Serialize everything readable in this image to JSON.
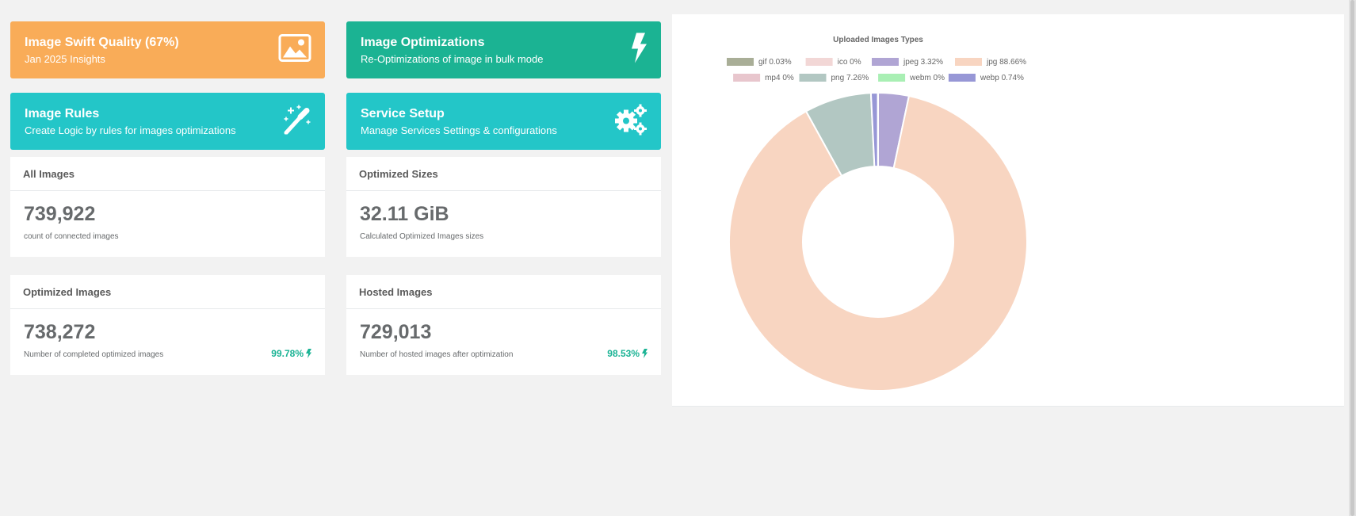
{
  "tiles": {
    "quality": {
      "title": "Image Swift Quality (67%)",
      "subtitle": "Jan 2025 Insights",
      "icon": "image-icon"
    },
    "optimizations": {
      "title": "Image Optimizations",
      "subtitle": "Re-Optimizations of image in bulk mode",
      "icon": "bolt-icon"
    },
    "rules": {
      "title": "Image Rules",
      "subtitle": "Create Logic by rules for images optimizations",
      "icon": "magic-wand-icon"
    },
    "setup": {
      "title": "Service Setup",
      "subtitle": "Manage Services Settings & configurations",
      "icon": "gears-icon"
    }
  },
  "cards": {
    "all_images": {
      "title": "All Images",
      "value": "739,922",
      "desc": "count of connected images"
    },
    "optimized_sizes": {
      "title": "Optimized Sizes",
      "value": "32.11 GiB",
      "desc": "Calculated Optimized Images sizes"
    },
    "optimized_images": {
      "title": "Optimized Images",
      "value": "738,272",
      "desc": "Number of completed optimized images",
      "pct": "99.78%"
    },
    "hosted_images": {
      "title": "Hosted Images",
      "value": "729,013",
      "desc": "Number of hosted images after optimization",
      "pct": "98.53%"
    }
  },
  "colors": {
    "orange": "#f9ac58",
    "green": "#1bb393",
    "teal": "#23c6c8",
    "accent": "#1ab394"
  },
  "chart_data": {
    "type": "pie",
    "title": "Uploaded Images Types",
    "legend_position": "top",
    "labels": [
      "gif 0.03%",
      "ico 0%",
      "jpeg 3.32%",
      "jpg 88.66%",
      "mp4 0%",
      "png 7.26%",
      "webm 0%",
      "webp 0.74%"
    ],
    "categories": [
      "gif",
      "ico",
      "jpeg",
      "jpg",
      "mp4",
      "png",
      "webm",
      "webp"
    ],
    "values": [
      0.03,
      0,
      3.32,
      88.66,
      0,
      7.26,
      0,
      0.74
    ],
    "colors": [
      "#a9ae97",
      "#f2d7d6",
      "#b0a5d4",
      "#f8d5c1",
      "#e8c6cd",
      "#b2c7c2",
      "#a9efb4",
      "#9797d6"
    ],
    "order": [
      2,
      3,
      5,
      7,
      0
    ]
  }
}
